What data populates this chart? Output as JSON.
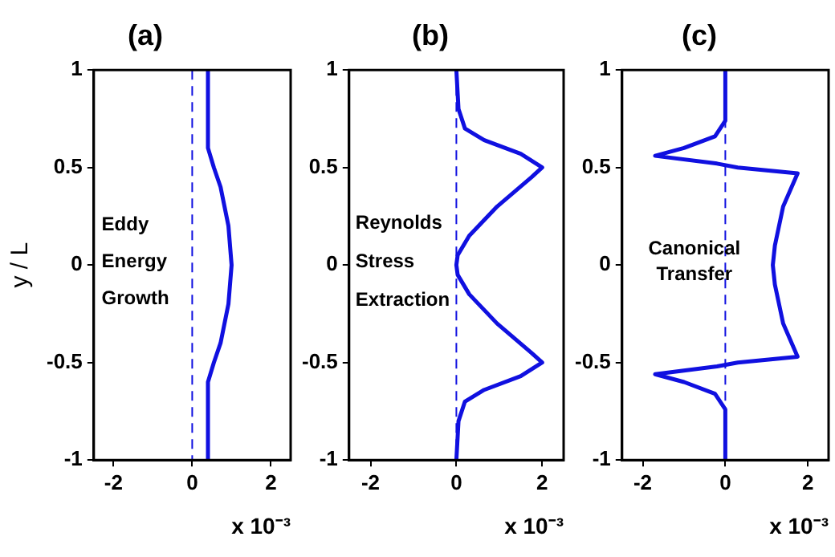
{
  "chart_data": [
    {
      "type": "line",
      "title": "(a)",
      "xlabel": "x 10⁻³",
      "ylabel": "y / L",
      "annotations": [
        "Eddy",
        "Energy",
        "Growth"
      ],
      "series": [
        {
          "color": "#1010e0",
          "x": [
            0.4,
            0.4,
            0.4,
            0.55,
            0.72,
            0.92,
            1.0,
            0.92,
            0.72,
            0.55,
            0.4,
            0.4,
            0.4
          ],
          "values": [
            -1,
            -0.8,
            -0.6,
            -0.5,
            -0.4,
            -0.2,
            0,
            0.2,
            0.4,
            0.5,
            0.6,
            0.8,
            1
          ]
        }
      ],
      "xlim": [
        -2.5,
        2.5
      ],
      "xticks": [
        -2,
        0,
        2
      ],
      "ylim": [
        -1,
        1
      ],
      "yticks": [
        -1,
        -0.5,
        0,
        0.5,
        1
      ],
      "ref_lines": [
        {
          "axis": "x",
          "value": 0,
          "color": "#1010e0",
          "line_style": "dashed"
        }
      ]
    },
    {
      "type": "line",
      "title": "(b)",
      "xlabel": "x 10⁻³",
      "annotations": [
        "Reynolds",
        "Stress",
        "Extraction"
      ],
      "series": [
        {
          "color": "#1010e0",
          "x": [
            0,
            0.05,
            0.2,
            0.65,
            1.5,
            2.0,
            1.75,
            0.95,
            0.3,
            0.03,
            0,
            0.03,
            0.3,
            0.95,
            1.75,
            2.0,
            1.5,
            0.65,
            0.2,
            0.05,
            0
          ],
          "values": [
            -1,
            -0.8,
            -0.7,
            -0.64,
            -0.57,
            -0.5,
            -0.45,
            -0.3,
            -0.15,
            -0.05,
            0,
            0.05,
            0.15,
            0.3,
            0.45,
            0.5,
            0.57,
            0.64,
            0.7,
            0.8,
            1
          ]
        }
      ],
      "xlim": [
        -2.5,
        2.5
      ],
      "xticks": [
        -2,
        0,
        2
      ],
      "ylim": [
        -1,
        1
      ],
      "yticks": [
        -1,
        -0.5,
        0,
        0.5,
        1
      ],
      "ref_lines": [
        {
          "axis": "x",
          "value": 0,
          "color": "#1010e0",
          "line_style": "dashed"
        }
      ]
    },
    {
      "type": "line",
      "title": "(c)",
      "xlabel": "x 10⁻³",
      "annotations": [
        "Canonical",
        "Transfer"
      ],
      "series": [
        {
          "color": "#1010e0",
          "x": [
            0,
            0,
            -0.25,
            -1.0,
            -1.7,
            -0.2,
            0.3,
            1.75,
            1.4,
            1.2,
            1.15,
            1.2,
            1.4,
            1.75,
            0.3,
            -0.2,
            -1.7,
            -1.0,
            -0.25,
            0,
            0
          ],
          "values": [
            -1,
            -0.74,
            -0.66,
            -0.6,
            -0.56,
            -0.52,
            -0.5,
            -0.47,
            -0.3,
            -0.1,
            0,
            0.1,
            0.3,
            0.47,
            0.5,
            0.52,
            0.56,
            0.6,
            0.66,
            0.74,
            1
          ]
        }
      ],
      "xlim": [
        -2.5,
        2.5
      ],
      "xticks": [
        -2,
        0,
        2
      ],
      "ylim": [
        -1,
        1
      ],
      "yticks": [
        -1,
        -0.5,
        0,
        0.5,
        1
      ],
      "ref_lines": [
        {
          "axis": "x",
          "value": 0,
          "color": "#1010e0",
          "line_style": "dashed"
        }
      ]
    }
  ]
}
